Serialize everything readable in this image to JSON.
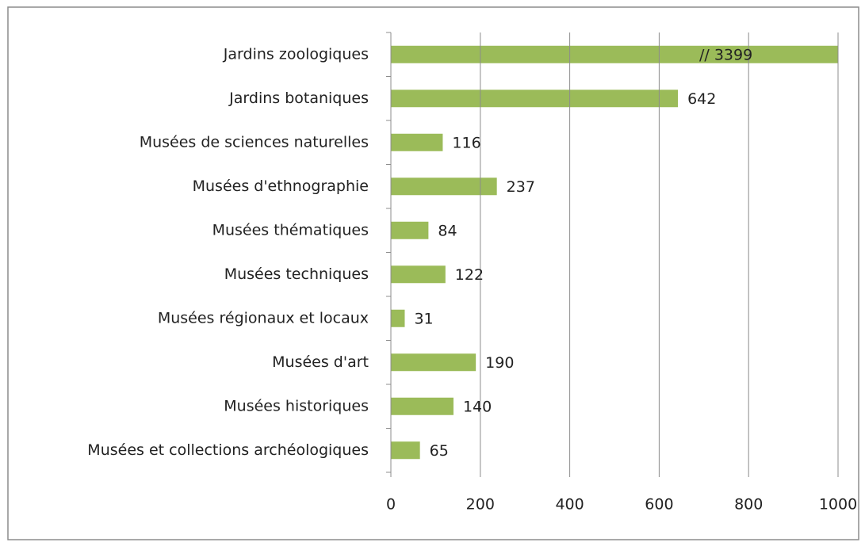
{
  "chart_data": {
    "type": "bar",
    "orientation": "horizontal",
    "categories": [
      "Jardins zoologiques",
      "Jardins botaniques",
      "Musées de sciences naturelles",
      "Musées d'ethnographie",
      "Musées thématiques",
      "Musées techniques",
      "Musées régionaux et locaux",
      "Musées d'art",
      "Musées historiques",
      "Musées et collections archéologiques"
    ],
    "values": [
      3399,
      642,
      116,
      237,
      84,
      122,
      31,
      190,
      140,
      65
    ],
    "value_labels": [
      "// 3399",
      "642",
      "116",
      "237",
      "84",
      "122",
      "31",
      "190",
      "140",
      "65"
    ],
    "color": "#9bbb59",
    "xlim": [
      0,
      1000
    ],
    "xticks": [
      0,
      200,
      400,
      600,
      800,
      1000
    ],
    "grid": true
  }
}
